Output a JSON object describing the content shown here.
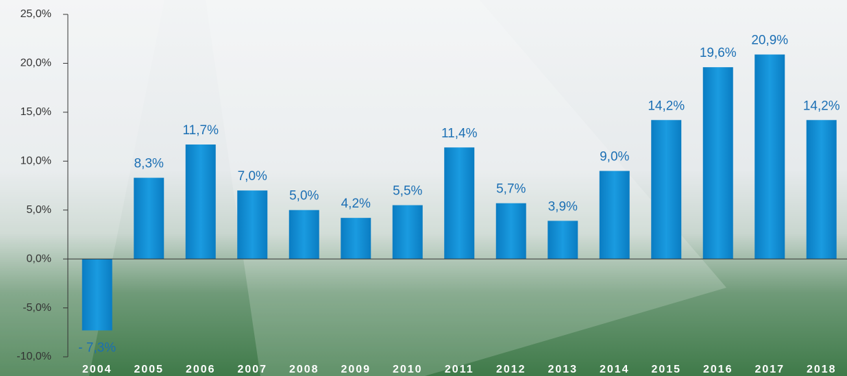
{
  "chart_data": {
    "type": "bar",
    "categories": [
      "2004",
      "2005",
      "2006",
      "2007",
      "2008",
      "2009",
      "2010",
      "2011",
      "2012",
      "2013",
      "2014",
      "2015",
      "2016",
      "2017",
      "2018"
    ],
    "values": [
      -7.3,
      8.3,
      11.7,
      7.0,
      5.0,
      4.2,
      5.5,
      11.4,
      5.7,
      3.9,
      9.0,
      14.2,
      19.6,
      20.9,
      14.2
    ],
    "value_labels": [
      "- 7,3%",
      "8,3%",
      "11,7%",
      "7,0%",
      "5,0%",
      "4,2%",
      "5,5%",
      "11,4%",
      "5,7%",
      "3,9%",
      "9,0%",
      "14,2%",
      "19,6%",
      "20,9%",
      "14,2%"
    ],
    "color": "#0b8fd6",
    "ylim": [
      -10,
      25
    ],
    "yticks": [
      {
        "value": -10,
        "label": "-10,0%"
      },
      {
        "value": -5,
        "label": "-5,0%"
      },
      {
        "value": 0,
        "label": "0,0%"
      },
      {
        "value": 5,
        "label": "5,0%"
      },
      {
        "value": 10,
        "label": "10,0%"
      },
      {
        "value": 15,
        "label": "15,0%"
      },
      {
        "value": 20,
        "label": "20,0%"
      },
      {
        "value": 25,
        "label": "25,0%"
      }
    ]
  }
}
